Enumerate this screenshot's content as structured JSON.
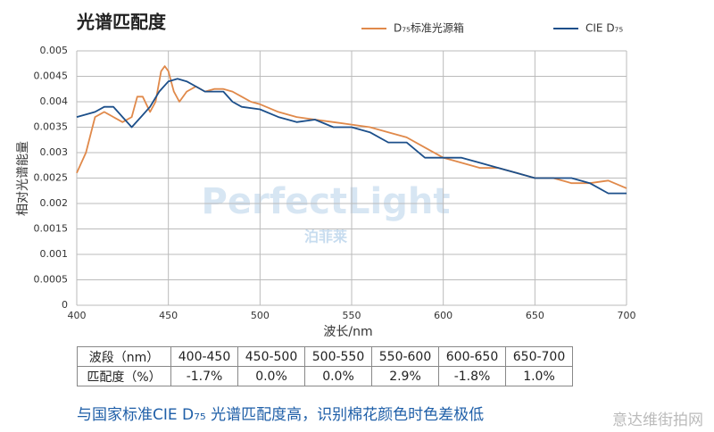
{
  "chart_data": {
    "type": "line",
    "title": "光谱匹配度",
    "x_label": "波长/nm",
    "y_label": "相对光谱能量",
    "xlim": [
      400,
      700
    ],
    "xticks": [
      400,
      450,
      500,
      550,
      600,
      650,
      700
    ],
    "ylim": [
      0,
      0.005
    ],
    "yticks": [
      0,
      0.0005,
      0.001,
      0.0015,
      0.002,
      0.0025,
      0.003,
      0.0035,
      0.004,
      0.0045,
      0.005
    ],
    "grid": true,
    "legend": "top-right",
    "series": [
      {
        "name": "D₇₅标准光源箱",
        "color": "#e0894a",
        "x": [
          400,
          405,
          410,
          415,
          420,
          425,
          430,
          433,
          436,
          440,
          443,
          446,
          448,
          450,
          453,
          456,
          460,
          465,
          470,
          475,
          480,
          485,
          490,
          495,
          500,
          510,
          520,
          530,
          540,
          550,
          560,
          570,
          580,
          590,
          600,
          610,
          620,
          630,
          640,
          650,
          660,
          670,
          680,
          690,
          700
        ],
        "values": [
          0.0026,
          0.003,
          0.0037,
          0.0038,
          0.0037,
          0.0036,
          0.0037,
          0.0041,
          0.0041,
          0.0038,
          0.004,
          0.0046,
          0.0047,
          0.0046,
          0.0042,
          0.004,
          0.0042,
          0.0043,
          0.0042,
          0.00425,
          0.00425,
          0.0042,
          0.0041,
          0.004,
          0.00395,
          0.0038,
          0.0037,
          0.00365,
          0.0036,
          0.00355,
          0.0035,
          0.0034,
          0.0033,
          0.0031,
          0.0029,
          0.0028,
          0.0027,
          0.0027,
          0.0026,
          0.0025,
          0.0025,
          0.0024,
          0.0024,
          0.00245,
          0.0023
        ]
      },
      {
        "name": "CIE D₇₅",
        "color": "#1c4f8a",
        "x": [
          400,
          405,
          410,
          415,
          420,
          425,
          430,
          435,
          440,
          445,
          450,
          455,
          460,
          465,
          470,
          475,
          480,
          485,
          490,
          500,
          510,
          520,
          530,
          540,
          550,
          560,
          570,
          580,
          590,
          600,
          610,
          620,
          630,
          640,
          650,
          660,
          670,
          680,
          690,
          700
        ],
        "values": [
          0.0037,
          0.00375,
          0.0038,
          0.0039,
          0.0039,
          0.0037,
          0.0035,
          0.0037,
          0.0039,
          0.0042,
          0.0044,
          0.00445,
          0.0044,
          0.0043,
          0.0042,
          0.0042,
          0.0042,
          0.004,
          0.0039,
          0.00385,
          0.0037,
          0.0036,
          0.00365,
          0.0035,
          0.0035,
          0.0034,
          0.0032,
          0.0032,
          0.0029,
          0.0029,
          0.0029,
          0.0028,
          0.0027,
          0.0026,
          0.0025,
          0.0025,
          0.0025,
          0.0024,
          0.0022,
          0.0022
        ]
      }
    ]
  },
  "watermark": [
    "PerfectLight",
    "泊菲莱",
    "意达维街拍网"
  ],
  "table": {
    "rows": [
      [
        "波段（nm）",
        "400-450",
        "450-500",
        "500-550",
        "550-600",
        "600-650",
        "650-700"
      ],
      [
        "匹配度（%）",
        "-1.7%",
        "0.0%",
        "0.0%",
        "2.9%",
        "-1.8%",
        "1.0%"
      ]
    ]
  },
  "caption": "与国家标准CIE D₇₅ 光谱匹配度高，识别棉花颜色时色差极低"
}
